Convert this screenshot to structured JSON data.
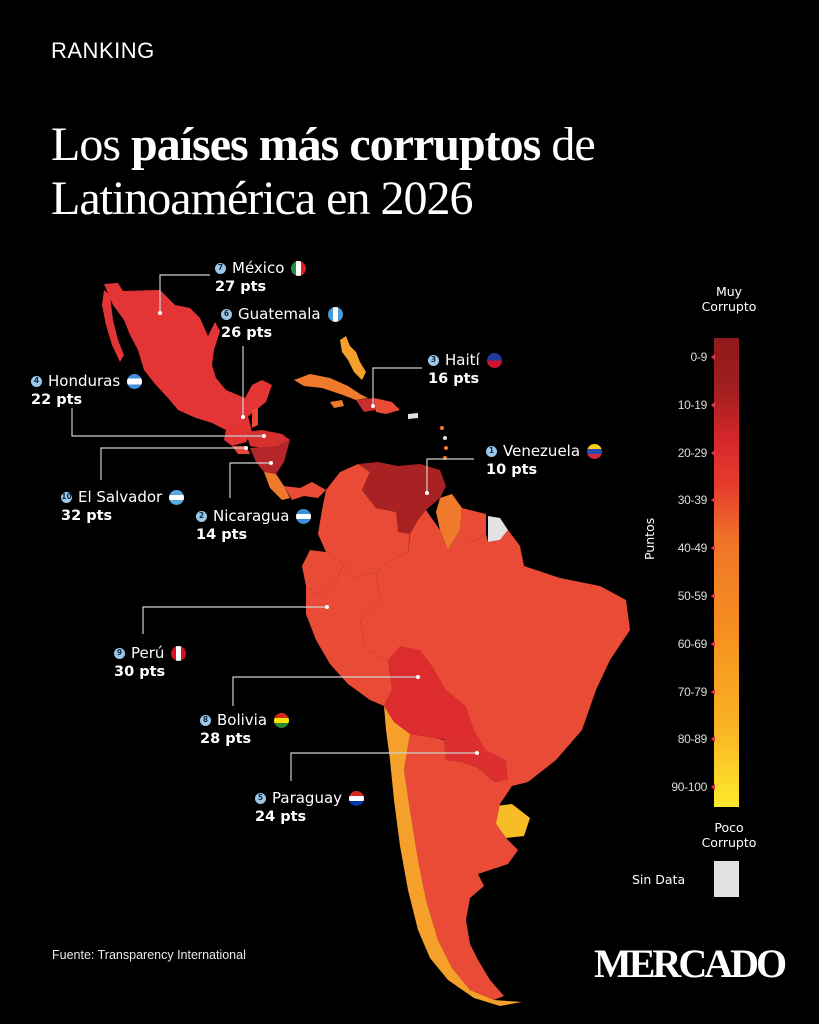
{
  "header": {
    "kicker": "RANKING",
    "title_part1": "Los ",
    "title_bold": "países más corruptos",
    "title_part2": " de",
    "title_line2": "Latinoamérica en 2026"
  },
  "chart_data": {
    "type": "choropleth",
    "title": "Los países más corruptos de Latinoamérica en 2026",
    "value_label": "Puntos",
    "unit": "pts",
    "countries": [
      {
        "rank": "1",
        "name": "Venezuela",
        "points": "10 pts",
        "value": 10,
        "color": "#a82224"
      },
      {
        "rank": "2",
        "name": "Nicaragua",
        "points": "14 pts",
        "value": 14,
        "color": "#b5262a"
      },
      {
        "rank": "3",
        "name": "Haití",
        "points": "16 pts",
        "value": 16,
        "color": "#c7302e"
      },
      {
        "rank": "4",
        "name": "Honduras",
        "points": "22 pts",
        "value": 22,
        "color": "#d6302f"
      },
      {
        "rank": "5",
        "name": "Paraguay",
        "points": "24 pts",
        "value": 24,
        "color": "#dd2f2f"
      },
      {
        "rank": "6",
        "name": "Guatemala",
        "points": "26 pts",
        "value": 26,
        "color": "#e23232"
      },
      {
        "rank": "7",
        "name": "México",
        "points": "27 pts",
        "value": 27,
        "color": "#e33535"
      },
      {
        "rank": "8",
        "name": "Bolivia",
        "points": "28 pts",
        "value": 28,
        "color": "#dd2c2e"
      },
      {
        "rank": "9",
        "name": "Perú",
        "points": "30 pts",
        "value": 30,
        "color": "#ea4b37"
      },
      {
        "rank": "10",
        "name": "El Salvador",
        "points": "32 pts",
        "value": 32,
        "color": "#ea4b37"
      }
    ],
    "legend": {
      "top_label_line1": "Muy",
      "top_label_line2": "Corrupto",
      "bottom_label_line1": "Poco",
      "bottom_label_line2": "Corrupto",
      "axis_title": "Puntos",
      "bins": [
        "0-9",
        "10-19",
        "20-29",
        "30-39",
        "40-49",
        "50-59",
        "60-69",
        "70-79",
        "80-89",
        "90-100"
      ],
      "no_data_label": "Sin Data",
      "no_data_color": "#e2e2e2"
    }
  },
  "colors": {
    "background": "#000000",
    "land_default": "#ea4b37",
    "orange": "#f07a2c",
    "light_orange": "#f5a02a",
    "yellow": "#f7bd26",
    "dark_red": "#a82224",
    "mid_red": "#dd2c2e",
    "rank_badge": "#9cc7e8"
  },
  "footer": {
    "source": "Fuente: Transparency International",
    "logo": "MERCADO"
  }
}
